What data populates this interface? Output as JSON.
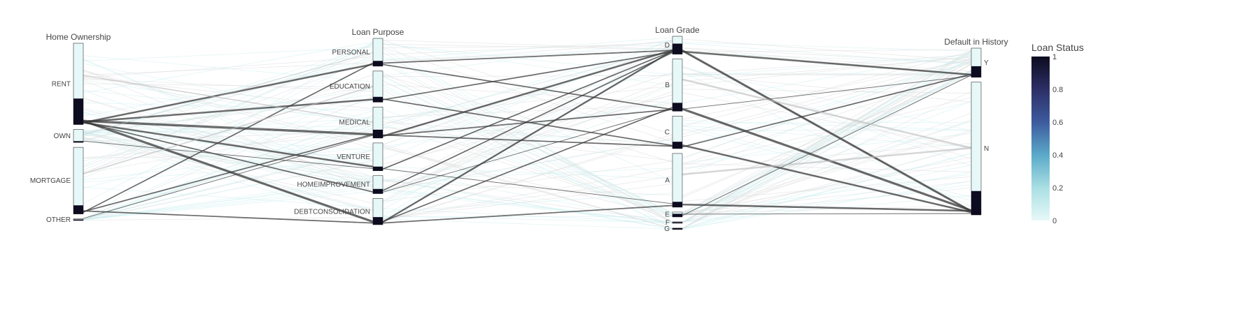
{
  "chart_data": {
    "type": "parallel_categories",
    "title": "",
    "colorscale": [
      "#e7f8f8",
      "#a9dfe3",
      "#5aa9c9",
      "#3d5b9e",
      "#2c2f66",
      "#0d0b1f"
    ],
    "colorbar": {
      "title": "Loan Status",
      "ticks": [
        "0",
        "0.2",
        "0.4",
        "0.6",
        "0.8",
        "1"
      ]
    },
    "dimensions": [
      {
        "label": "Home Ownership",
        "categories": [
          {
            "label": "RENT",
            "share": 0.5,
            "default_share": 0.32
          },
          {
            "label": "OWN",
            "share": 0.08,
            "default_share": 0.1
          },
          {
            "label": "MORTGAGE",
            "share": 0.41,
            "default_share": 0.13
          },
          {
            "label": "OTHER",
            "share": 0.01,
            "default_share": 0.4
          }
        ]
      },
      {
        "label": "Loan Purpose",
        "categories": [
          {
            "label": "PERSONAL",
            "share": 0.17,
            "default_share": 0.19
          },
          {
            "label": "EDUCATION",
            "share": 0.19,
            "default_share": 0.17
          },
          {
            "label": "MEDICAL",
            "share": 0.19,
            "default_share": 0.27
          },
          {
            "label": "VENTURE",
            "share": 0.17,
            "default_share": 0.15
          },
          {
            "label": "HOMEIMPROVEMENT",
            "share": 0.11,
            "default_share": 0.26
          },
          {
            "label": "DEBTCONSOLIDATION",
            "share": 0.16,
            "default_share": 0.29
          }
        ]
      },
      {
        "label": "Loan Grade",
        "categories": [
          {
            "label": "D",
            "share": 0.11,
            "default_share": 0.59
          },
          {
            "label": "B",
            "share": 0.32,
            "default_share": 0.16
          },
          {
            "label": "C",
            "share": 0.2,
            "default_share": 0.21
          },
          {
            "label": "A",
            "share": 0.33,
            "default_share": 0.1
          },
          {
            "label": "E",
            "share": 0.03,
            "default_share": 0.64
          },
          {
            "label": "F",
            "share": 0.007,
            "default_share": 0.7
          },
          {
            "label": "G",
            "share": 0.002,
            "default_share": 0.98
          }
        ]
      },
      {
        "label": "Default in History",
        "categories": [
          {
            "label": "Y",
            "share": 0.18,
            "default_share": 0.38
          },
          {
            "label": "N",
            "share": 0.82,
            "default_share": 0.18
          }
        ]
      }
    ],
    "flows": [
      {
        "dims": [
          "RENT",
          "PERSONAL"
        ],
        "weight": 3,
        "color": 1
      },
      {
        "dims": [
          "RENT",
          "EDUCATION"
        ],
        "weight": 3,
        "color": 1
      },
      {
        "dims": [
          "RENT",
          "MEDICAL"
        ],
        "weight": 4,
        "color": 1
      },
      {
        "dims": [
          "RENT",
          "VENTURE"
        ],
        "weight": 3,
        "color": 1
      },
      {
        "dims": [
          "RENT",
          "HOMEIMPROVEMENT"
        ],
        "weight": 2,
        "color": 1
      },
      {
        "dims": [
          "RENT",
          "DEBTCONSOLIDATION"
        ],
        "weight": 4,
        "color": 1
      },
      {
        "dims": [
          "MORTGAGE",
          "PERSONAL"
        ],
        "weight": 2,
        "color": 1
      },
      {
        "dims": [
          "MORTGAGE",
          "MEDICAL"
        ],
        "weight": 2,
        "color": 1
      },
      {
        "dims": [
          "MORTGAGE",
          "DEBTCONSOLIDATION"
        ],
        "weight": 2,
        "color": 1
      },
      {
        "dims": [
          "OWN",
          "VENTURE"
        ],
        "weight": 1,
        "color": 1
      },
      {
        "dims": [
          "OTHER",
          "MEDICAL"
        ],
        "weight": 1,
        "color": 1
      },
      {
        "dims": [
          "PERSONAL",
          "D"
        ],
        "weight": 2,
        "color": 1
      },
      {
        "dims": [
          "PERSONAL",
          "B"
        ],
        "weight": 2,
        "color": 1
      },
      {
        "dims": [
          "EDUCATION",
          "D"
        ],
        "weight": 2,
        "color": 1
      },
      {
        "dims": [
          "EDUCATION",
          "C"
        ],
        "weight": 2,
        "color": 1
      },
      {
        "dims": [
          "MEDICAL",
          "D"
        ],
        "weight": 3,
        "color": 1
      },
      {
        "dims": [
          "MEDICAL",
          "B"
        ],
        "weight": 2,
        "color": 1
      },
      {
        "dims": [
          "MEDICAL",
          "C"
        ],
        "weight": 2,
        "color": 1
      },
      {
        "dims": [
          "VENTURE",
          "D"
        ],
        "weight": 2,
        "color": 1
      },
      {
        "dims": [
          "VENTURE",
          "A"
        ],
        "weight": 1,
        "color": 1
      },
      {
        "dims": [
          "HOMEIMPROVEMENT",
          "D"
        ],
        "weight": 2,
        "color": 1
      },
      {
        "dims": [
          "HOMEIMPROVEMENT",
          "B"
        ],
        "weight": 1,
        "color": 1
      },
      {
        "dims": [
          "DEBTCONSOLIDATION",
          "D"
        ],
        "weight": 3,
        "color": 1
      },
      {
        "dims": [
          "DEBTCONSOLIDATION",
          "B"
        ],
        "weight": 2,
        "color": 1
      },
      {
        "dims": [
          "DEBTCONSOLIDATION",
          "A"
        ],
        "weight": 2,
        "color": 1
      },
      {
        "dims": [
          "D",
          "Y"
        ],
        "weight": 3,
        "color": 1
      },
      {
        "dims": [
          "D",
          "N"
        ],
        "weight": 4,
        "color": 1
      },
      {
        "dims": [
          "B",
          "N"
        ],
        "weight": 4,
        "color": 1
      },
      {
        "dims": [
          "B",
          "Y"
        ],
        "weight": 1,
        "color": 1
      },
      {
        "dims": [
          "C",
          "N"
        ],
        "weight": 3,
        "color": 1
      },
      {
        "dims": [
          "C",
          "Y"
        ],
        "weight": 2,
        "color": 1
      },
      {
        "dims": [
          "A",
          "N"
        ],
        "weight": 3,
        "color": 1
      },
      {
        "dims": [
          "E",
          "N"
        ],
        "weight": 1,
        "color": 1
      },
      {
        "dims": [
          "E",
          "Y"
        ],
        "weight": 1,
        "color": 1
      },
      {
        "dims": [
          "RENT",
          "MEDICAL"
        ],
        "weight": 2,
        "color": 0
      },
      {
        "dims": [
          "MORTGAGE",
          "EDUCATION"
        ],
        "weight": 2,
        "color": 0
      },
      {
        "dims": [
          "OWN",
          "PERSONAL"
        ],
        "weight": 1,
        "color": 0
      },
      {
        "dims": [
          "B",
          "N"
        ],
        "weight": 3,
        "color": 0
      },
      {
        "dims": [
          "A",
          "N"
        ],
        "weight": 3,
        "color": 0
      }
    ]
  }
}
